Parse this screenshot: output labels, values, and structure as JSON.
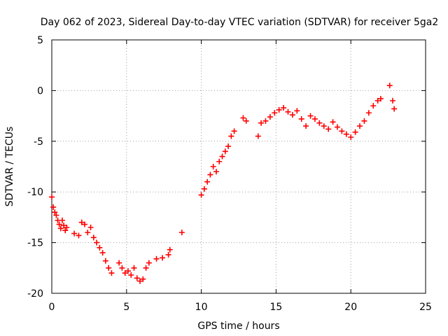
{
  "chart_data": {
    "type": "scatter",
    "title": "Day 062 of 2023, Sidereal Day-to-day VTEC variation (SDTVAR) for receiver 5ga2",
    "xlabel": "GPS time / hours",
    "ylabel": "SDTVAR / TECUs",
    "xlim": [
      0,
      25
    ],
    "ylim": [
      -20,
      5
    ],
    "xticks": [
      0,
      5,
      10,
      15,
      20,
      25
    ],
    "xtick_labels": [
      "0",
      "5",
      "10",
      "15",
      "20",
      "25"
    ],
    "yticks": [
      5,
      0,
      -5,
      -10,
      -15,
      -20
    ],
    "ytick_labels": [
      "5",
      "0",
      "-5",
      "-10",
      "-15",
      "-20"
    ],
    "grid": true,
    "marker": "+",
    "series": [
      {
        "name": "SDTVAR",
        "color": "#ff0000",
        "x": [
          0.0,
          0.1,
          0.2,
          0.3,
          0.4,
          0.5,
          0.6,
          0.7,
          0.8,
          0.9,
          1.0,
          1.5,
          1.8,
          2.0,
          2.2,
          2.4,
          2.6,
          2.8,
          3.0,
          3.2,
          3.4,
          3.6,
          3.8,
          4.0,
          4.5,
          4.7,
          4.9,
          5.1,
          5.3,
          5.5,
          5.7,
          5.9,
          6.1,
          6.3,
          6.5,
          7.0,
          7.4,
          7.8,
          7.9,
          8.7,
          10.0,
          10.2,
          10.4,
          10.6,
          10.8,
          11.0,
          11.2,
          11.4,
          11.6,
          11.8,
          12.0,
          12.2,
          12.8,
          13.0,
          13.8,
          14.0,
          14.3,
          14.6,
          14.9,
          15.2,
          15.5,
          15.8,
          16.1,
          16.4,
          16.7,
          17.0,
          17.3,
          17.6,
          17.9,
          18.2,
          18.5,
          18.8,
          19.1,
          19.4,
          19.7,
          20.0,
          20.3,
          20.6,
          20.9,
          21.2,
          21.5,
          21.8,
          22.0,
          22.6,
          22.8,
          22.9
        ],
        "y": [
          -10.5,
          -11.5,
          -12.0,
          -12.3,
          -12.8,
          -13.2,
          -13.6,
          -12.8,
          -13.3,
          -13.8,
          -13.5,
          -14.1,
          -14.3,
          -13.0,
          -13.2,
          -14.0,
          -13.5,
          -14.5,
          -15.0,
          -15.5,
          -16.0,
          -16.8,
          -17.5,
          -18.0,
          -17.0,
          -17.5,
          -18.0,
          -17.8,
          -18.2,
          -17.5,
          -18.5,
          -18.8,
          -18.6,
          -17.5,
          -17.0,
          -16.6,
          -16.5,
          -16.2,
          -15.7,
          -14.0,
          -10.3,
          -9.7,
          -9.0,
          -8.3,
          -7.5,
          -8.0,
          -7.0,
          -6.5,
          -6.0,
          -5.5,
          -4.5,
          -4.0,
          -2.7,
          -3.0,
          -4.5,
          -3.2,
          -3.0,
          -2.6,
          -2.2,
          -1.9,
          -1.7,
          -2.1,
          -2.4,
          -2.0,
          -2.8,
          -3.5,
          -2.5,
          -2.8,
          -3.2,
          -3.5,
          -3.8,
          -3.1,
          -3.6,
          -4.0,
          -4.3,
          -4.6,
          -4.1,
          -3.5,
          -3.0,
          -2.2,
          -1.5,
          -1.0,
          -0.8,
          0.5,
          -1.0,
          -1.8
        ]
      }
    ]
  }
}
